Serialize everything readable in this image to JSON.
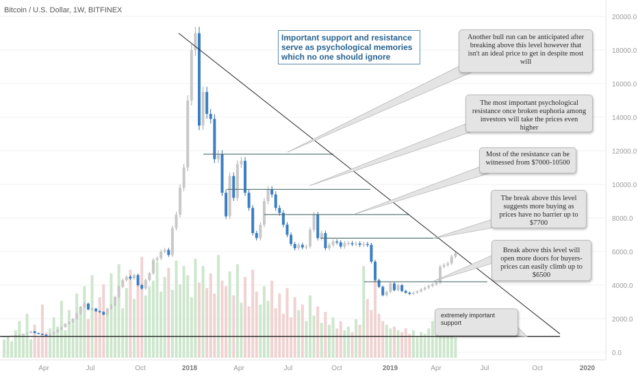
{
  "symbol_title": "Bitcoin / U.S. Dollar, 1W, BITFINEX",
  "headline": "Important support and resistance serve as psychological memories which no one should ignore",
  "callouts": {
    "bull_run": "Another bull run can be anticipated after breaking above this level however that isn't an ideal price to get in despite most will",
    "psych_resistance": "The most important psychological resistance once broken euphoria among investors will take the prices even higher",
    "resistance_zone": "Most of the resistance can be witnessed from $7000-10500",
    "break_7700": "The break above this level suggests more buying as prices have no barrier up to $7700",
    "break_6500": "Break above this level will open more doors for buyers-prices can easily climb up to $6500",
    "support": "extremely important support"
  },
  "colors": {
    "up_candle": "#c8c8c8",
    "down_candle": "#3c7ec4",
    "volume_up": "#cde6cd",
    "volume_down": "#f0d2d2",
    "level_line": "#4a6b6b",
    "trend_line": "#222222",
    "axis_text": "#9a9a9a"
  },
  "chart_data": {
    "type": "candlestick",
    "title": "Bitcoin / U.S. Dollar, 1W, BITFINEX",
    "y_ticks": [
      "20000.0",
      "18000.0",
      "16000.0",
      "14000.0",
      "12000.0",
      "10000.0",
      "8000.0",
      "6000.0",
      "4000.0",
      "2000.0",
      "0.0"
    ],
    "x_ticks": [
      "Apr",
      "Jul",
      "Oct",
      "2018",
      "Apr",
      "Jul",
      "Oct",
      "2019",
      "Apr",
      "Jul",
      "Oct",
      "2020"
    ],
    "ylim": [
      0,
      20000
    ],
    "close_series": [
      950,
      950,
      990,
      1020,
      1050,
      1100,
      1150,
      1250,
      1150,
      1100,
      1050,
      1000,
      1080,
      1200,
      1350,
      1500,
      1700,
      1800,
      2000,
      2300,
      2700,
      2900,
      2550,
      2600,
      2450,
      2400,
      2250,
      2600,
      2800,
      3300,
      3900,
      4300,
      4500,
      4400,
      4600,
      4000,
      3800,
      4300,
      4700,
      5500,
      5600,
      6000,
      6100,
      5800,
      7400,
      8200,
      9800,
      11000,
      15000,
      18000,
      19000,
      13500,
      15500,
      14200,
      13900,
      11500,
      11800,
      9500,
      8100,
      10500,
      9200,
      11200,
      11400,
      9500,
      8600,
      7100,
      6800,
      7600,
      9000,
      9700,
      9400,
      8600,
      8300,
      7600,
      7000,
      6450,
      6200,
      6400,
      6250,
      6300,
      7300,
      8200,
      6800,
      7100,
      6200,
      6400,
      6600,
      6550,
      6300,
      6500,
      6500,
      6450,
      6480,
      6400,
      6450,
      6400,
      5400,
      4300,
      3900,
      3400,
      3600,
      4100,
      3700,
      4000,
      3650,
      3550,
      3480,
      3550,
      3630,
      3750,
      3850,
      3950,
      4050,
      4150,
      5100,
      5200,
      5300,
      5700,
      5900
    ],
    "volume_series": [
      1.0,
      1.2,
      0.9,
      1.5,
      2.0,
      1.3,
      2.4,
      1.0,
      1.8,
      1.1,
      2.9,
      1.4,
      1.6,
      2.2,
      1.7,
      3.1,
      1.5,
      2.6,
      2.0,
      3.5,
      2.8,
      3.9,
      2.1,
      4.5,
      2.6,
      3.3,
      4.0,
      2.4,
      4.6,
      3.0,
      5.1,
      2.7,
      3.8,
      4.8,
      3.2,
      4.1,
      5.5,
      3.4,
      3.9,
      4.2,
      5.2,
      3.6,
      4.4,
      4.9,
      3.7,
      5.3,
      4.0,
      5.0,
      4.5,
      3.3,
      5.4,
      4.1,
      5.0,
      3.8,
      4.6,
      3.5,
      5.6,
      4.2,
      3.9,
      4.7,
      3.4,
      5.1,
      3.0,
      4.4,
      2.8,
      4.8,
      3.6,
      2.9,
      3.9,
      3.1,
      4.2,
      2.7,
      3.5,
      2.4,
      3.8,
      2.2,
      3.3,
      2.6,
      2.9,
      2.0,
      3.4,
      2.3,
      2.8,
      1.9,
      2.5,
      1.8,
      2.2,
      1.6,
      2.0,
      1.5,
      1.7,
      1.4,
      2.1,
      1.8,
      5.0,
      3.2,
      2.6,
      4.7,
      2.4,
      2.0,
      1.8,
      1.6,
      1.7,
      1.5,
      1.4,
      1.6,
      1.3,
      1.5,
      1.2,
      1.4,
      1.3,
      1.6,
      2.0,
      1.7,
      1.5,
      1.2,
      1.3,
      1.4,
      1.1
    ],
    "horizontal_levels": [
      11800,
      9700,
      8200,
      6800,
      4200,
      950
    ],
    "trend_line": {
      "from_price": 19000,
      "to_price": 1100
    }
  }
}
